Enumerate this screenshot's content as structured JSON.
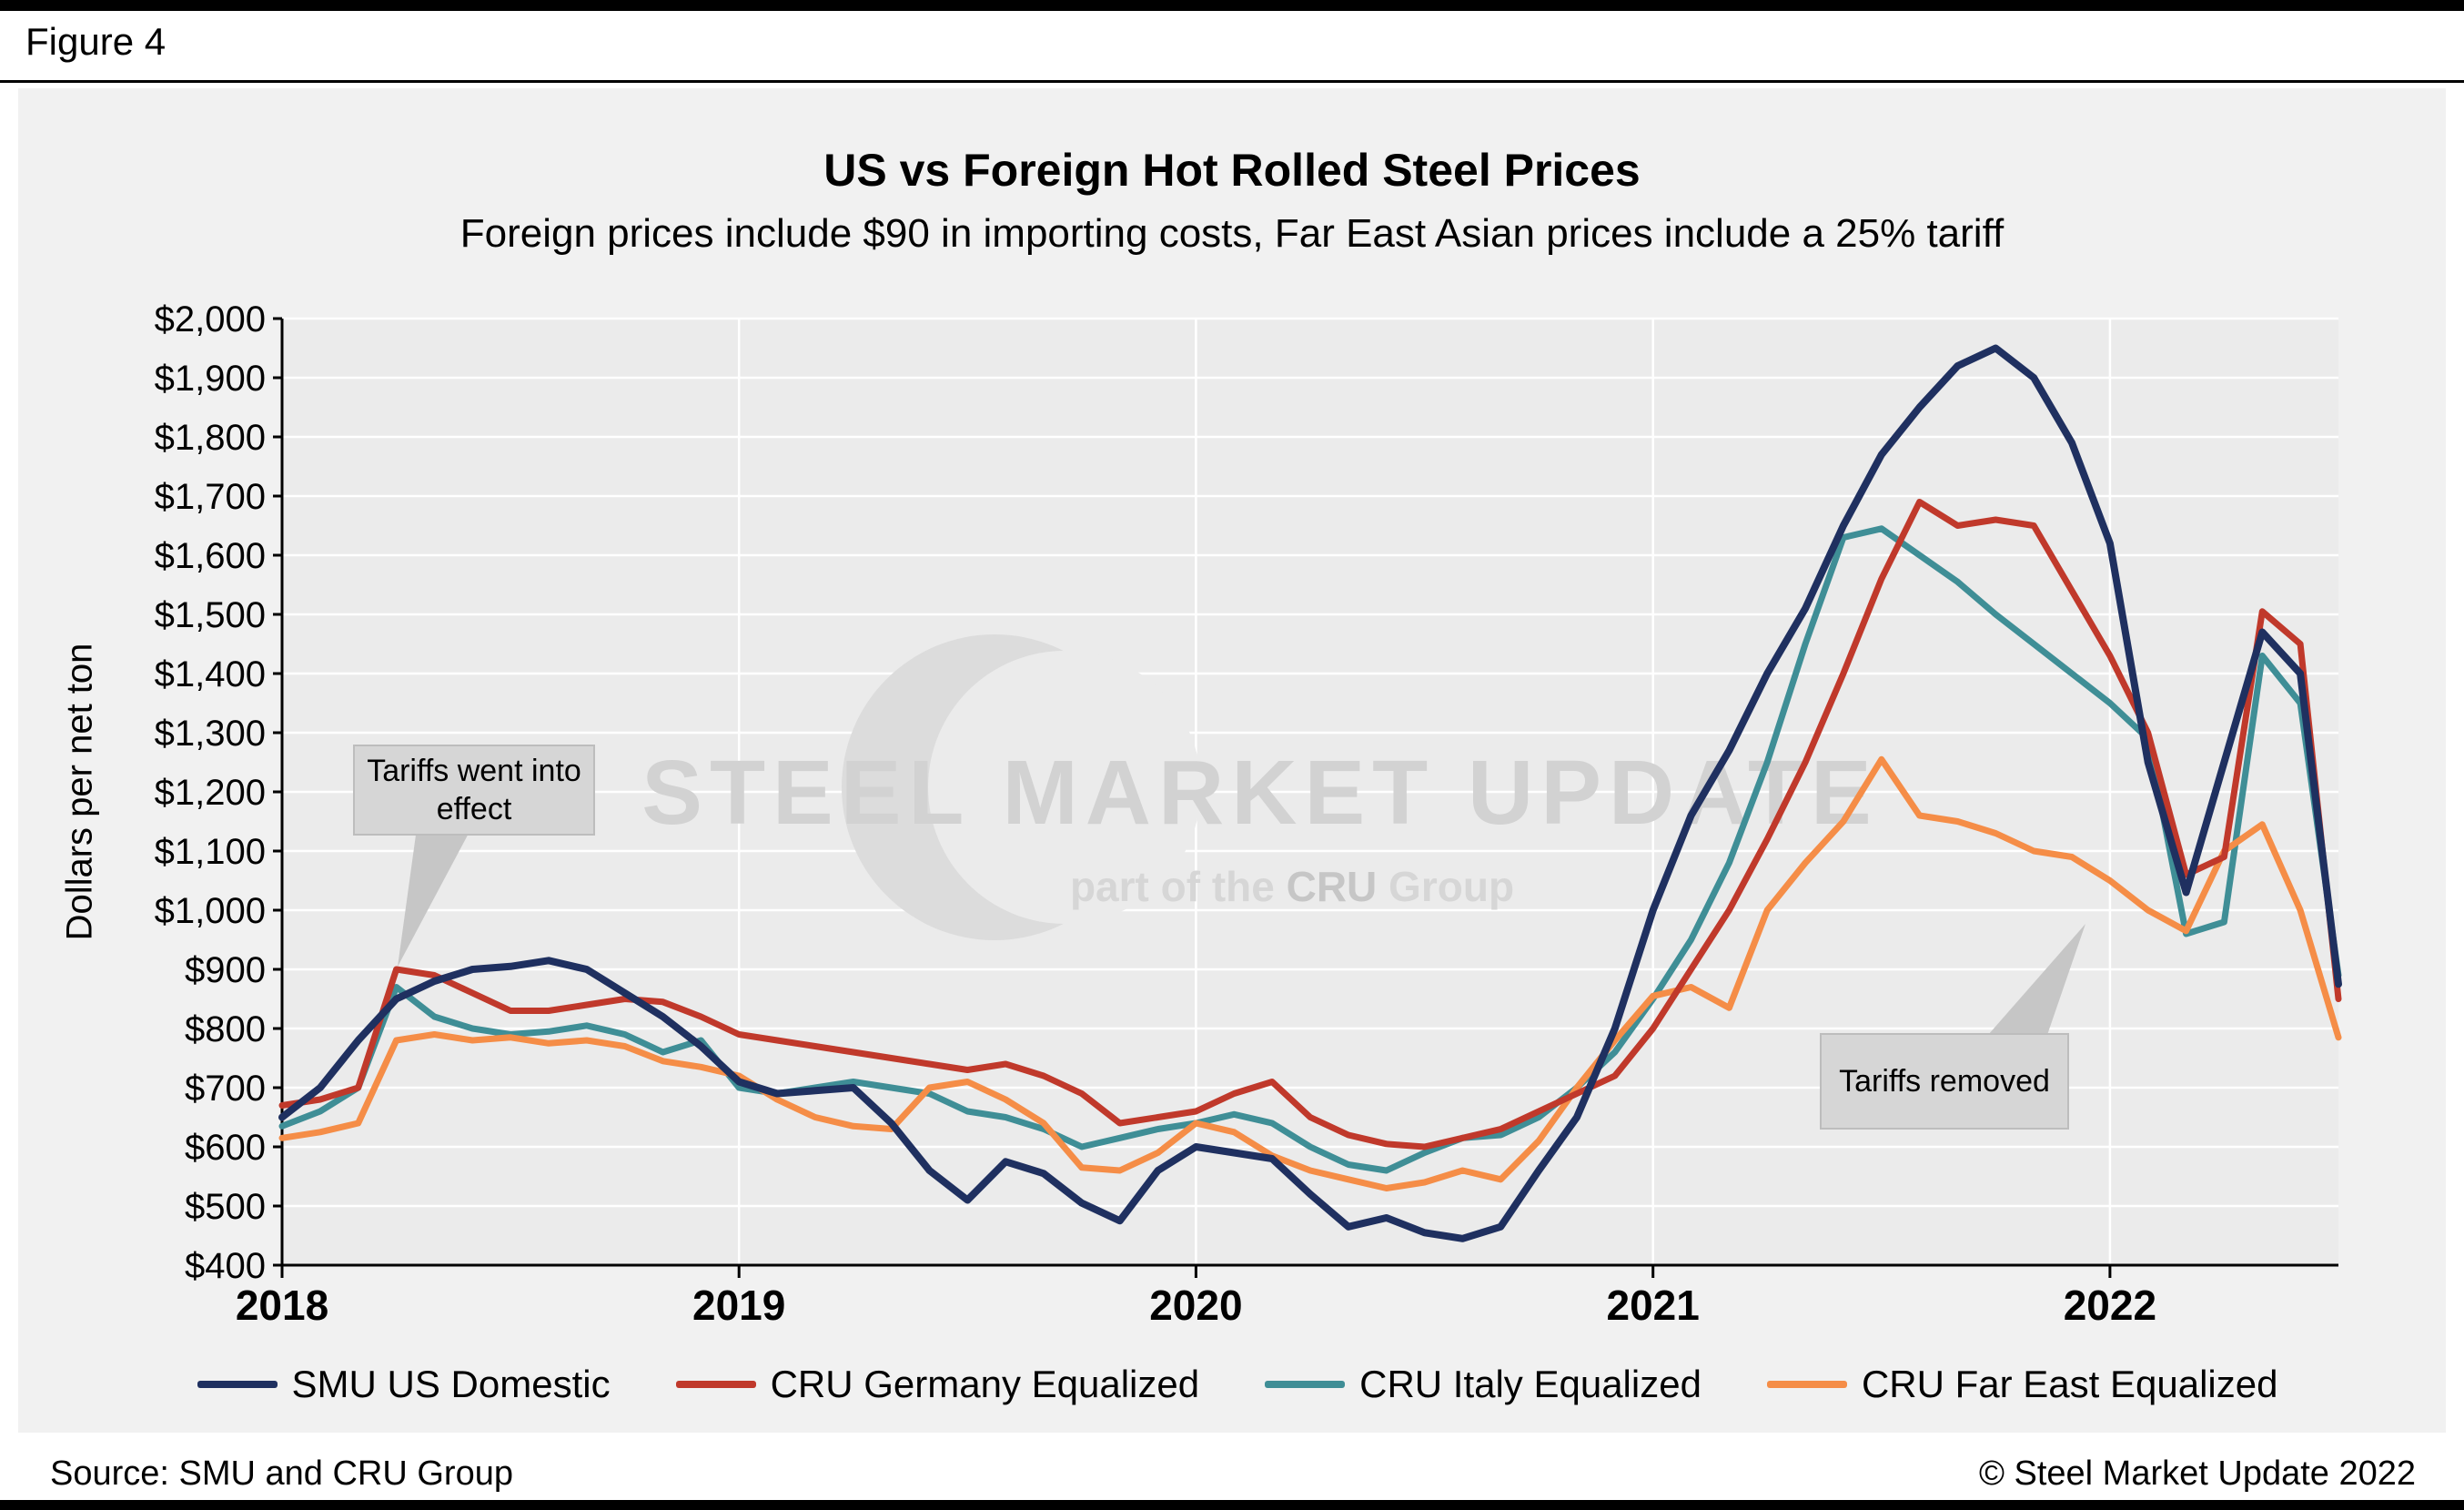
{
  "figure_label": "Figure 4",
  "watermark": {
    "text": "STEEL MARKET UPDATE",
    "sub_prefix": "part of the",
    "sub_logo": "CRU",
    "sub_suffix": "Group"
  },
  "footer": {
    "source": "Source: SMU and CRU Group",
    "copyright": "© Steel Market Update 2022"
  },
  "chart_data": {
    "type": "line",
    "title": "US vs Foreign Hot Rolled Steel Prices",
    "subtitle": "Foreign prices include $90 in importing costs, Far East Asian prices include a 25% tariff",
    "ylabel": "Dollars per net ton",
    "ylim": [
      400,
      2000
    ],
    "ytick_step": 100,
    "ytick_labels": [
      "$400",
      "$500",
      "$600",
      "$700",
      "$800",
      "$900",
      "$1,000",
      "$1,100",
      "$1,200",
      "$1,300",
      "$1,400",
      "$1,500",
      "$1,600",
      "$1,700",
      "$1,800",
      "$1,900",
      "$2,000"
    ],
    "xticks": [
      2018,
      2019,
      2020,
      2021,
      2022
    ],
    "x_start": "2018-01",
    "x_interval": "monthly",
    "grid": true,
    "legend_position": "bottom",
    "annotations": [
      {
        "text": "Tariffs went into effect"
      },
      {
        "text": "Tariffs removed"
      }
    ],
    "series": [
      {
        "name": "SMU US Domestic",
        "color": "#1f3060",
        "values": [
          650,
          700,
          780,
          850,
          880,
          900,
          905,
          915,
          900,
          860,
          820,
          770,
          710,
          690,
          695,
          700,
          640,
          560,
          510,
          575,
          555,
          505,
          475,
          560,
          600,
          590,
          580,
          520,
          465,
          480,
          455,
          445,
          465,
          560,
          650,
          800,
          1000,
          1160,
          1270,
          1400,
          1510,
          1650,
          1770,
          1850,
          1920,
          1950,
          1900,
          1790,
          1620,
          1250,
          1030,
          1250,
          1470,
          1400,
          875
        ]
      },
      {
        "name": "CRU Germany Equalized",
        "color": "#c0392b",
        "values": [
          670,
          680,
          700,
          900,
          890,
          860,
          830,
          830,
          840,
          850,
          845,
          820,
          790,
          780,
          770,
          760,
          750,
          740,
          730,
          740,
          720,
          690,
          640,
          650,
          660,
          690,
          710,
          650,
          620,
          605,
          600,
          615,
          630,
          660,
          690,
          720,
          800,
          900,
          1000,
          1120,
          1250,
          1400,
          1560,
          1690,
          1650,
          1660,
          1650,
          1540,
          1430,
          1300,
          1060,
          1090,
          1505,
          1450,
          850
        ]
      },
      {
        "name": "CRU Italy Equalized",
        "color": "#3f8e96",
        "values": [
          635,
          660,
          700,
          870,
          820,
          800,
          790,
          795,
          805,
          790,
          760,
          780,
          700,
          690,
          700,
          710,
          700,
          690,
          660,
          650,
          630,
          600,
          615,
          630,
          640,
          655,
          640,
          600,
          570,
          560,
          590,
          615,
          620,
          650,
          700,
          760,
          850,
          950,
          1080,
          1250,
          1450,
          1630,
          1645,
          1600,
          1555,
          1500,
          1450,
          1400,
          1350,
          1290,
          960,
          980,
          1430,
          1350,
          890
        ]
      },
      {
        "name": "CRU Far East Equalized",
        "color": "#f58d47",
        "values": [
          615,
          625,
          640,
          780,
          790,
          780,
          785,
          775,
          780,
          770,
          745,
          735,
          720,
          680,
          650,
          635,
          630,
          700,
          710,
          680,
          640,
          565,
          560,
          590,
          640,
          625,
          585,
          560,
          545,
          530,
          540,
          560,
          545,
          610,
          700,
          780,
          855,
          870,
          835,
          1000,
          1080,
          1150,
          1255,
          1160,
          1150,
          1130,
          1100,
          1090,
          1050,
          1000,
          965,
          1100,
          1145,
          1000,
          785
        ]
      }
    ]
  }
}
